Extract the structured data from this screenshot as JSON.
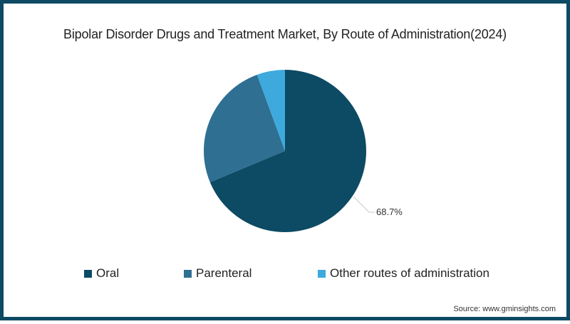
{
  "title": "Bipolar Disorder Drugs and Treatment Market, By Route of Administration(2024)",
  "colors": {
    "border": "#0e4a63",
    "oral": "#0d4a63",
    "parenteral": "#2e6f92",
    "other": "#3ea9dd",
    "leader_line": "#c8c8c8"
  },
  "legend": {
    "items": [
      {
        "label": "Oral",
        "color": "#0d4a63"
      },
      {
        "label": "Parenteral",
        "color": "#2e6f92"
      },
      {
        "label": "Other routes of administration",
        "color": "#3ea9dd"
      }
    ]
  },
  "data_label": "68.7%",
  "source": "Source: www.gminsights.com",
  "chart_data": {
    "type": "pie",
    "title": "Bipolar Disorder Drugs and Treatment Market, By Route of Administration(2024)",
    "categories": [
      "Oral",
      "Parenteral",
      "Other routes of administration"
    ],
    "values": [
      68.7,
      25.7,
      5.6
    ],
    "unit": "%",
    "labeled_values": {
      "Oral": "68.7%"
    },
    "start_angle_deg": 0,
    "direction": "clockwise",
    "legend_position": "bottom",
    "source": "Source: www.gminsights.com"
  }
}
